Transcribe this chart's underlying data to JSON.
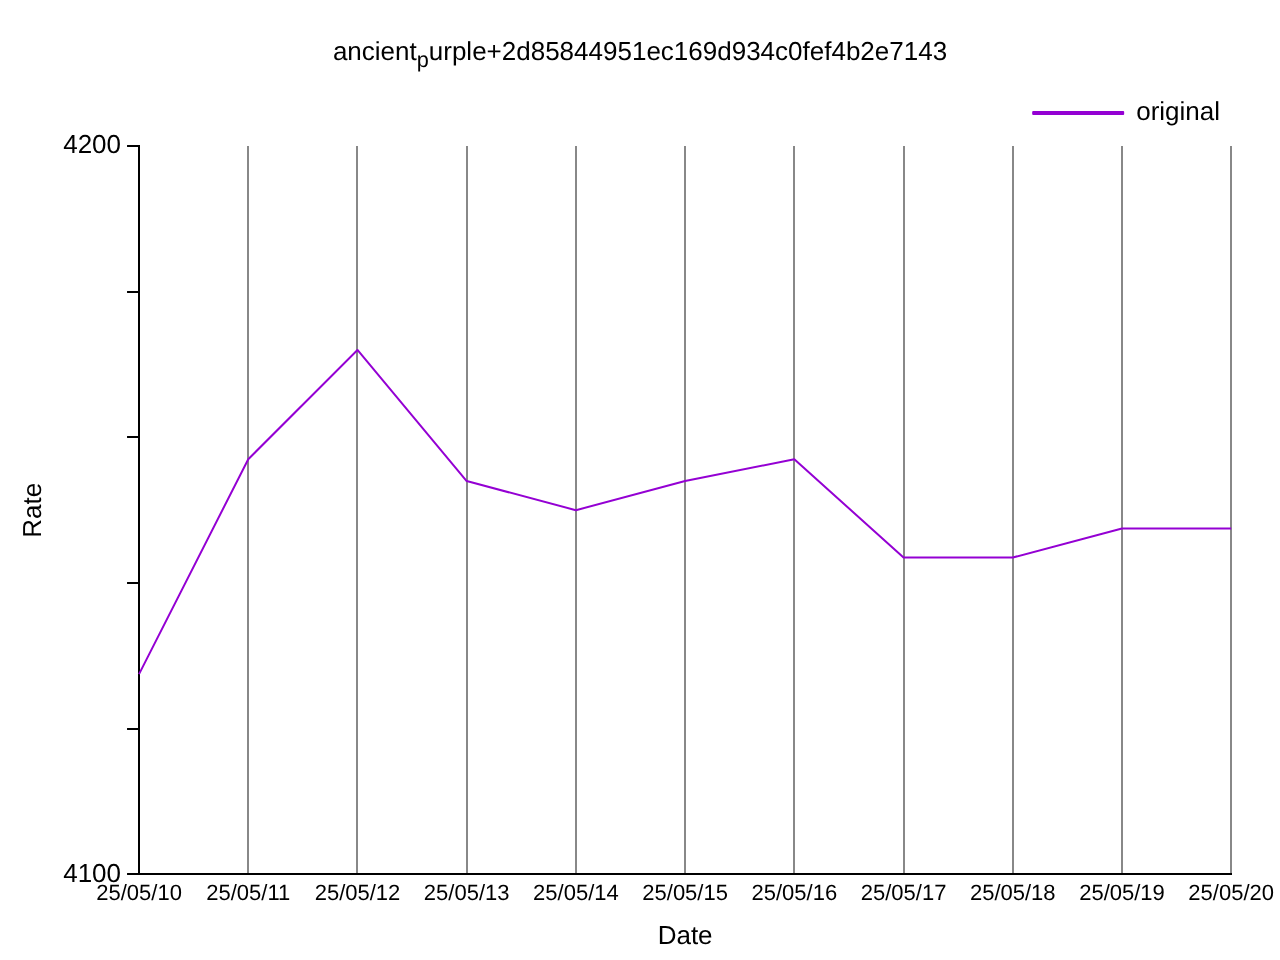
{
  "chart_data": {
    "type": "line",
    "title": "ancient$_{p}$urple+2d85844951ec169d934c0fef4b2e7143",
    "xlabel": "Date",
    "ylabel": "Rate",
    "categories": [
      "25/05/10",
      "25/05/11",
      "25/05/12",
      "25/05/13",
      "25/05/14",
      "25/05/15",
      "25/05/16",
      "25/05/17",
      "25/05/18",
      "25/05/19",
      "25/05/20"
    ],
    "series": [
      {
        "name": "original",
        "color": "#9400d3",
        "values": [
          4127.5,
          4157,
          4172,
          4154,
          4150,
          4154,
          4157,
          4143.5,
          4143.5,
          4147.5,
          4147.5
        ]
      }
    ],
    "ylim": [
      4100,
      4200
    ],
    "yticks": [
      4100,
      {
        "value": 4120,
        "label": null
      },
      {
        "value": 4140,
        "label": null
      },
      {
        "value": 4160,
        "label": null
      },
      {
        "value": 4180,
        "label": null
      },
      4200
    ],
    "grid": "x",
    "legend": "top right",
    "marker": "none",
    "line_style": "solid"
  }
}
